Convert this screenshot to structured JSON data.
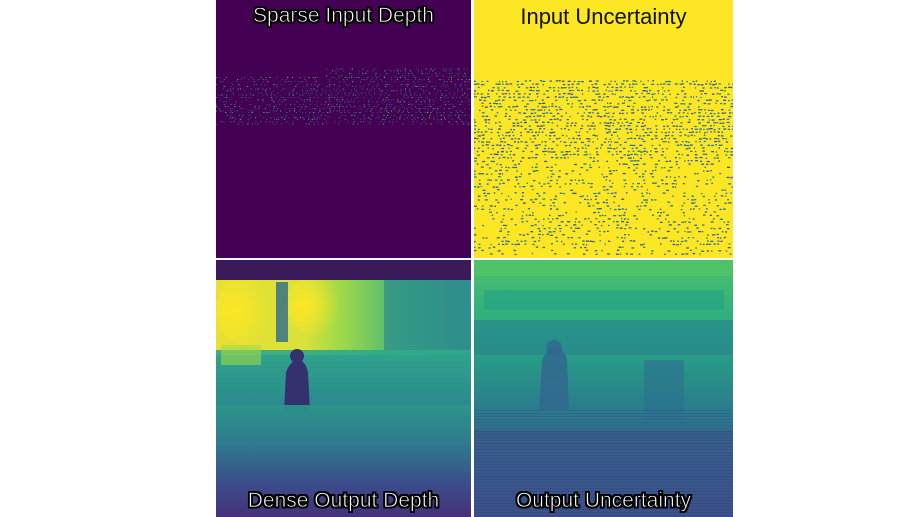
{
  "figure": {
    "panels": [
      {
        "id": "sparse-input-depth",
        "caption": "Sparse Input Depth",
        "colormap": "viridis"
      },
      {
        "id": "input-uncertainty",
        "caption": "Input Uncertainty",
        "colormap": "viridis"
      },
      {
        "id": "dense-output-depth",
        "caption": "Dense Output Depth",
        "colormap": "viridis"
      },
      {
        "id": "output-uncertainty",
        "caption": "Output Uncertainty",
        "colormap": "viridis"
      }
    ]
  },
  "colors": {
    "viridis_dark": "#440154",
    "viridis_blue": "#3b528b",
    "viridis_teal": "#21918c",
    "viridis_green": "#5ec962",
    "viridis_yellow": "#fde725",
    "separator": "#ffffff"
  }
}
